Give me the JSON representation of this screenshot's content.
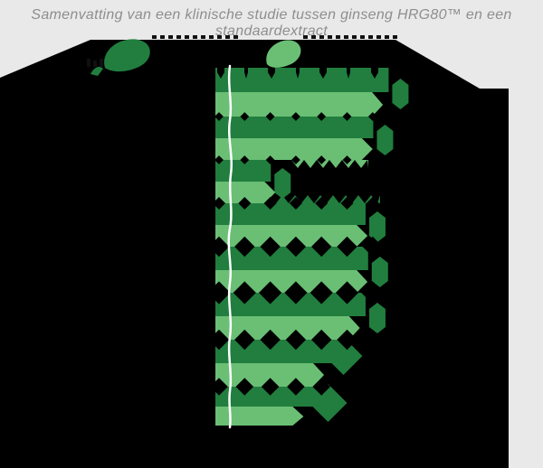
{
  "page": {
    "background_color": "#e9e9e9",
    "panel_color": "#000000"
  },
  "title": {
    "text": "Samenvatting van een klinische studie tussen ginseng HRG80™ en een standaardextract",
    "color": "#8e8e8e"
  },
  "legend": {
    "items": [
      {
        "id": "hrg80",
        "label": "",
        "icon": "ginseng-leaf-icon",
        "color": "#217e3e"
      },
      {
        "id": "standaard",
        "label": "",
        "icon": "ginseng-leaf-icon",
        "color": "#6abf75"
      }
    ],
    "note": ""
  },
  "axis": {
    "baseline_style": "hand-drawn-white-line",
    "gridline_marker": "diamond",
    "gridline_step_pct": 10,
    "tick_labels_visible": false
  },
  "chart_data": {
    "type": "bar",
    "orientation": "horizontal",
    "title": "Samenvatting van een klinische studie tussen ginseng HRG80™ en een standaardextract",
    "categories": [
      "",
      "",
      "",
      "",
      "",
      "",
      "",
      ""
    ],
    "series": [
      {
        "name": "ginseng HRG80™",
        "color": "#217e3e",
        "values": [
          74,
          68,
          28,
          65,
          66,
          65,
          56,
          50
        ]
      },
      {
        "name": "standaardextract",
        "color": "#6abf75",
        "values": [
          64,
          60,
          22,
          58,
          58,
          55,
          41,
          33
        ]
      }
    ],
    "value_unit": "%",
    "xlim": [
      0,
      110
    ],
    "legend_position": "top",
    "grid": "dotted-diamond-vertical"
  },
  "colors": {
    "dark_green": "#217e3e",
    "light_green": "#6abf75",
    "axis_white": "#ffffff",
    "marker_black": "#000000"
  }
}
